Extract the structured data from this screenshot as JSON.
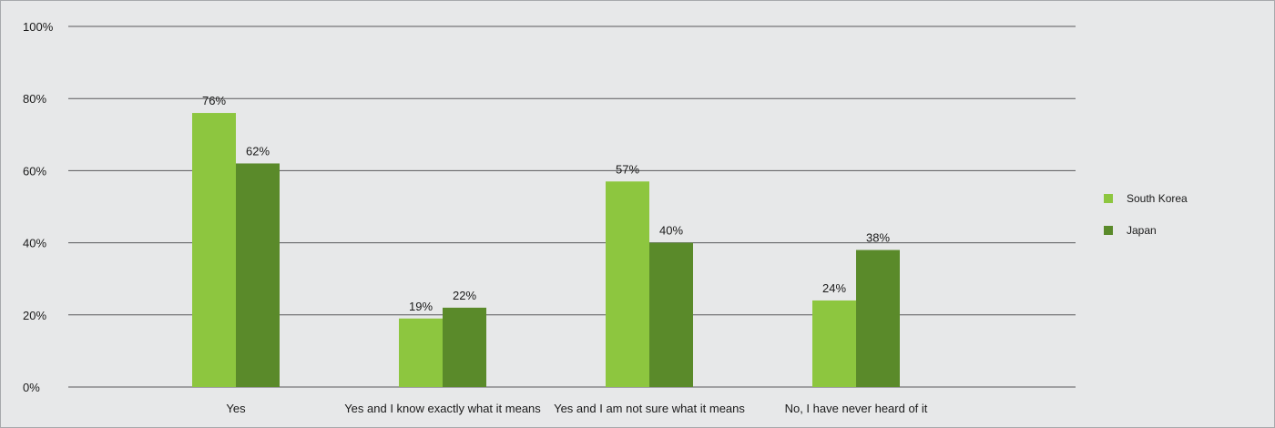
{
  "chart_data": {
    "type": "bar",
    "categories": [
      "Yes",
      "Yes and I know exactly what it means",
      "Yes and I am not sure what it means",
      "No, I have never heard of it"
    ],
    "series": [
      {
        "name": "South Korea",
        "values": [
          76,
          19,
          57,
          24
        ],
        "labels": [
          "76%",
          "19%",
          "57%",
          "24%"
        ],
        "color": "#8dc63f"
      },
      {
        "name": "Japan",
        "values": [
          62,
          22,
          40,
          38
        ],
        "labels": [
          "62%",
          "22%",
          "40%",
          "38%"
        ],
        "color": "#5a8a2a"
      }
    ],
    "ylim": [
      0,
      100
    ],
    "yticks": [
      0,
      20,
      40,
      60,
      80,
      100
    ],
    "ytick_labels": [
      "0%",
      "20%",
      "40%",
      "60%",
      "80%",
      "100%"
    ],
    "grid": true,
    "legend_position": "right",
    "title": "",
    "xlabel": "",
    "ylabel": ""
  },
  "colors": {
    "background": "#e7e8e9",
    "gridline": "#58595b",
    "text": "#1a1a1a"
  }
}
